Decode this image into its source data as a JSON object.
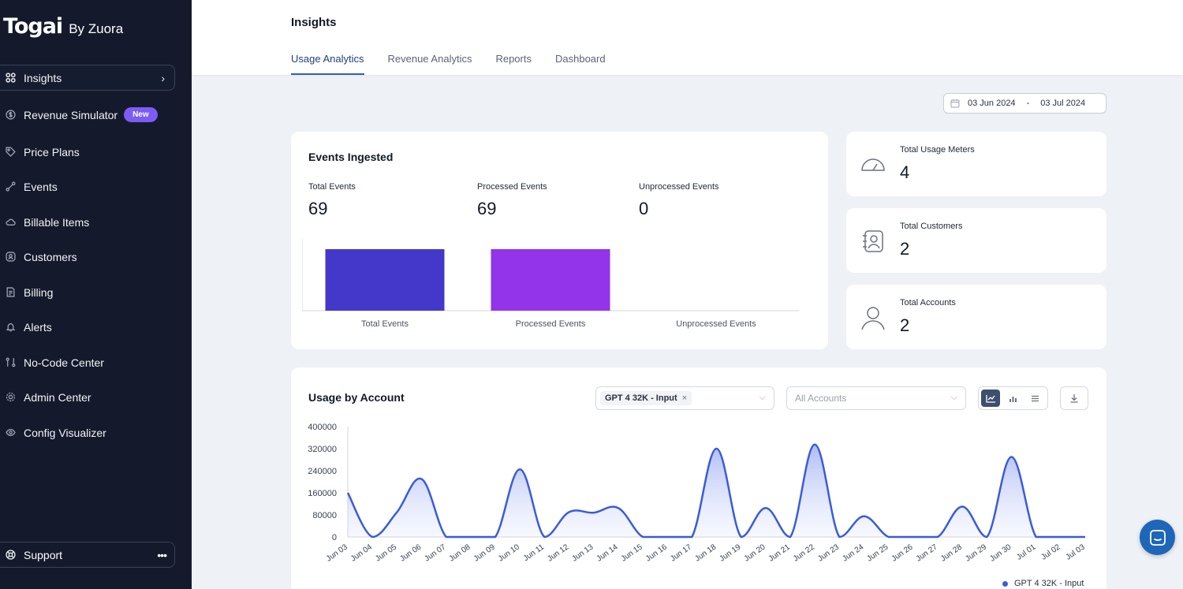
{
  "brand": {
    "name": "Togai",
    "sub": "By Zuora"
  },
  "sidebar": {
    "items": [
      {
        "label": "Insights",
        "icon": "grid-icon",
        "active": true
      },
      {
        "label": "Revenue Simulator",
        "icon": "dollar-icon",
        "badge": "New"
      },
      {
        "label": "Price Plans",
        "icon": "tag-icon"
      },
      {
        "label": "Events",
        "icon": "event-icon"
      },
      {
        "label": "Billable Items",
        "icon": "cloud-icon"
      },
      {
        "label": "Customers",
        "icon": "customer-icon"
      },
      {
        "label": "Billing",
        "icon": "invoice-icon"
      },
      {
        "label": "Alerts",
        "icon": "bell-icon"
      },
      {
        "label": "No-Code Center",
        "icon": "flow-icon"
      },
      {
        "label": "Admin Center",
        "icon": "gear-icon"
      },
      {
        "label": "Config Visualizer",
        "icon": "eye-icon"
      }
    ],
    "support": {
      "label": "Support",
      "more": "•••"
    }
  },
  "header": {
    "title": "Insights",
    "tabs": [
      {
        "label": "Usage Analytics",
        "active": true
      },
      {
        "label": "Revenue Analytics"
      },
      {
        "label": "Reports"
      },
      {
        "label": "Dashboard"
      }
    ]
  },
  "date_range": {
    "start": "03 Jun 2024",
    "separator": "-",
    "end": "03 Jul 2024"
  },
  "events_ingested": {
    "title": "Events Ingested",
    "stats": [
      {
        "label": "Total Events",
        "value": "69"
      },
      {
        "label": "Processed Events",
        "value": "69"
      },
      {
        "label": "Unprocessed Events",
        "value": "0"
      }
    ]
  },
  "stat_cards": [
    {
      "label": "Total Usage Meters",
      "value": "4",
      "icon": "gauge-icon"
    },
    {
      "label": "Total Customers",
      "value": "2",
      "icon": "contact-book-icon"
    },
    {
      "label": "Total Accounts",
      "value": "2",
      "icon": "user-icon"
    }
  ],
  "usage_by_account": {
    "title": "Usage by Account",
    "meter_chip": "GPT 4 32K - Input",
    "chip_remove": "×",
    "accounts_placeholder": "All Accounts",
    "legend": "GPT 4 32K - Input"
  },
  "chart_data": [
    {
      "type": "bar",
      "categories": [
        "Total Events",
        "Processed Events",
        "Unprocessed Events"
      ],
      "values": [
        69,
        69,
        0
      ],
      "colors": [
        "#4338ca",
        "#9333ea",
        "#9333ea"
      ],
      "title": "",
      "xlabel": "",
      "ylabel": ""
    },
    {
      "type": "area",
      "x": [
        "Jun 03",
        "Jun 04",
        "Jun 05",
        "Jun 06",
        "Jun 07",
        "Jun 08",
        "Jun 09",
        "Jun 10",
        "Jun 11",
        "Jun 12",
        "Jun 13",
        "Jun 14",
        "Jun 15",
        "Jun 16",
        "Jun 17",
        "Jun 18",
        "Jun 19",
        "Jun 20",
        "Jun 21",
        "Jun 22",
        "Jun 23",
        "Jun 24",
        "Jun 25",
        "Jun 26",
        "Jun 27",
        "Jun 28",
        "Jun 29",
        "Jun 30",
        "Jul 01",
        "Jul 02",
        "Jul 03"
      ],
      "series": [
        {
          "name": "GPT 4 32K - Input",
          "color": "#3b5bdb",
          "values": [
            160000,
            0,
            90000,
            210000,
            0,
            0,
            0,
            245000,
            0,
            90000,
            88000,
            105000,
            0,
            0,
            0,
            320000,
            0,
            105000,
            0,
            335000,
            0,
            75000,
            0,
            0,
            0,
            110000,
            0,
            290000,
            0,
            0,
            0
          ]
        }
      ],
      "ylim": [
        0,
        400000
      ],
      "yticks": [
        "400000",
        "320000",
        "240000",
        "160000",
        "80000",
        "0"
      ],
      "title": "",
      "xlabel": "",
      "ylabel": ""
    }
  ]
}
